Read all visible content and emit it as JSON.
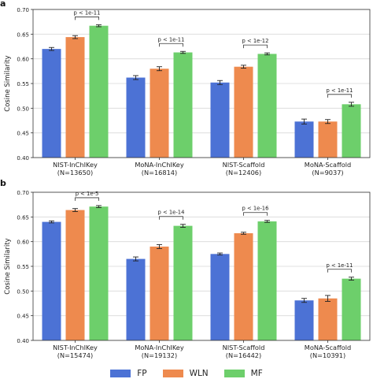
{
  "panels": [
    "a",
    "b"
  ],
  "colors": {
    "FP": "#4c72d5",
    "WLN": "#ee8a4e",
    "MF": "#6dcf6b"
  },
  "legend": [
    "FP",
    "WLN",
    "MF"
  ],
  "chart_data": [
    {
      "type": "bar",
      "panel": "a",
      "ylabel": "Cosine Similarity",
      "ylim": [
        0.4,
        0.7
      ],
      "yticks": [
        "0.40",
        "0.45",
        "0.50",
        "0.55",
        "0.60",
        "0.65",
        "0.70"
      ],
      "grid": true,
      "categories": [
        [
          "NIST-InChIKey",
          "(N=13650)"
        ],
        [
          "MoNA-InChIKey",
          "(N=16814)"
        ],
        [
          "NIST-Scaffold",
          "(N=12406)"
        ],
        [
          "MoNA-Scaffold",
          "(N=9037)"
        ]
      ],
      "series": [
        {
          "name": "FP",
          "values": [
            0.62,
            0.562,
            0.552,
            0.473
          ],
          "errors": [
            0.003,
            0.004,
            0.004,
            0.005
          ]
        },
        {
          "name": "WLN",
          "values": [
            0.644,
            0.58,
            0.584,
            0.473
          ],
          "errors": [
            0.003,
            0.004,
            0.003,
            0.004
          ]
        },
        {
          "name": "MF",
          "values": [
            0.667,
            0.613,
            0.61,
            0.508
          ],
          "errors": [
            0.002,
            0.002,
            0.002,
            0.004
          ]
        }
      ],
      "annotations": [
        "p < 1e-11",
        "p < 1e-11",
        "p < 1e-12",
        "p < 1e-11"
      ]
    },
    {
      "type": "bar",
      "panel": "b",
      "ylabel": "Cosine Similarity",
      "ylim": [
        0.4,
        0.7
      ],
      "yticks": [
        "0.40",
        "0.45",
        "0.50",
        "0.55",
        "0.60",
        "0.65",
        "0.70"
      ],
      "grid": true,
      "categories": [
        [
          "NIST-InChIKey",
          "(N=15474)"
        ],
        [
          "MoNA-InChIKey",
          "(N=19132)"
        ],
        [
          "NIST-Scaffold",
          "(N=16442)"
        ],
        [
          "MoNA-Scaffold",
          "(N=10391)"
        ]
      ],
      "series": [
        {
          "name": "FP",
          "values": [
            0.64,
            0.565,
            0.575,
            0.481
          ],
          "errors": [
            0.002,
            0.004,
            0.002,
            0.004
          ]
        },
        {
          "name": "WLN",
          "values": [
            0.664,
            0.59,
            0.617,
            0.485
          ],
          "errors": [
            0.003,
            0.004,
            0.002,
            0.006
          ]
        },
        {
          "name": "MF",
          "values": [
            0.671,
            0.632,
            0.641,
            0.525
          ],
          "errors": [
            0.002,
            0.003,
            0.002,
            0.003
          ]
        }
      ],
      "annotations": [
        "p < 1e-5",
        "p < 1e-14",
        "p < 1e-16",
        "p < 1e-11"
      ]
    }
  ]
}
